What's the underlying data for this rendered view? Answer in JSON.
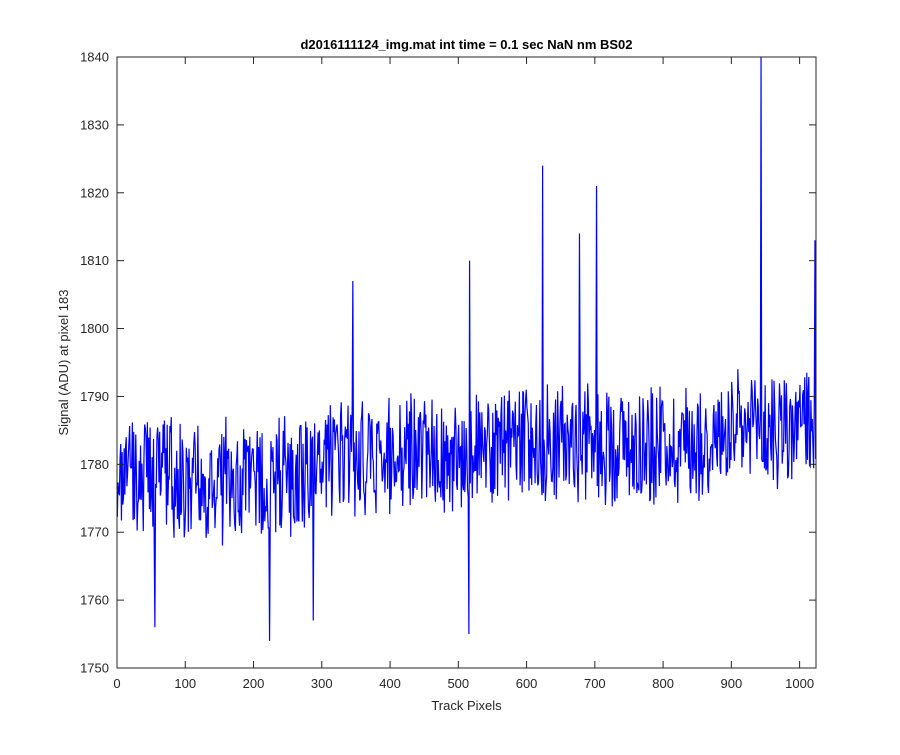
{
  "chart_data": {
    "type": "line",
    "title": "d2016111124_img.mat int time = 0.1 sec  NaN nm BS02",
    "xlabel": "Track Pixels",
    "ylabel": "Signal (ADU) at pixel 183",
    "xlim": [
      0,
      1024
    ],
    "ylim": [
      1750,
      1840
    ],
    "xticks": [
      0,
      100,
      200,
      300,
      400,
      500,
      600,
      700,
      800,
      900,
      1000
    ],
    "yticks": [
      1750,
      1760,
      1770,
      1780,
      1790,
      1800,
      1810,
      1820,
      1830,
      1840
    ],
    "grid": false,
    "legend": "none",
    "line_color": "#0000ff",
    "baseline": {
      "x": [
        0,
        100,
        200,
        300,
        400,
        500,
        600,
        700,
        800,
        900,
        1024
      ],
      "y": [
        1778,
        1778,
        1777,
        1780,
        1781,
        1782,
        1783,
        1783,
        1783,
        1784,
        1786
      ]
    },
    "noise_amplitude": 8,
    "n_points": 1024,
    "notable_points": [
      {
        "x": 55,
        "y": 1756
      },
      {
        "x": 223,
        "y": 1754
      },
      {
        "x": 287,
        "y": 1757
      },
      {
        "x": 345,
        "y": 1807
      },
      {
        "x": 515,
        "y": 1755
      },
      {
        "x": 516,
        "y": 1810
      },
      {
        "x": 623,
        "y": 1824
      },
      {
        "x": 677,
        "y": 1814
      },
      {
        "x": 702,
        "y": 1821
      },
      {
        "x": 943,
        "y": 1840
      },
      {
        "x": 1022,
        "y": 1813
      }
    ]
  }
}
